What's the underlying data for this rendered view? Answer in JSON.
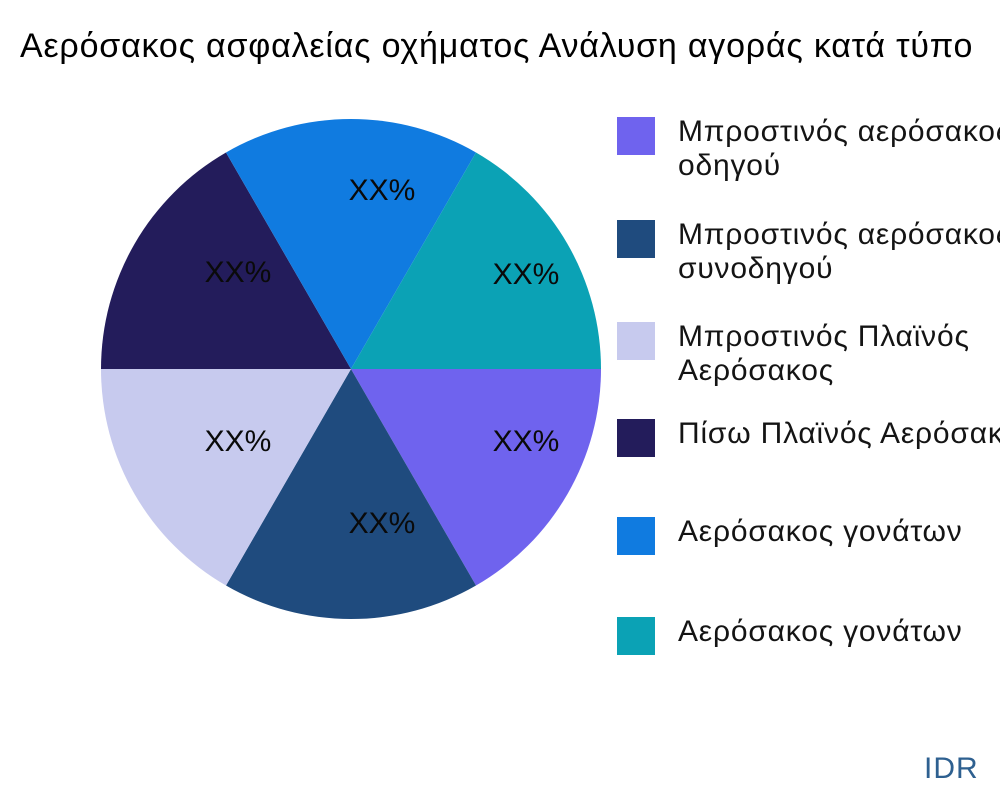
{
  "header": {
    "title": "Αερόσακος ασφαλείας οχήματος Ανάλυση αγοράς κατά τύπο"
  },
  "watermark": "IDR",
  "colors": {
    "background": "#ffffff",
    "title_text": "#000000",
    "legend_text": "#141414",
    "watermark_text": "#2e6090"
  },
  "chart_data": {
    "type": "pie",
    "title": "Αερόσακος ασφαλείας οχήματος Ανάλυση αγοράς κατά τύπο",
    "legend_position": "right",
    "start_angle_deg": 0,
    "direction": "clockwise",
    "equal_slices": true,
    "slices": [
      {
        "label": "Μπροστινός αερόσακος οδηγού",
        "label_lines": [
          "Μπροστινός αερόσακος",
          "οδηγού"
        ],
        "value": 16.67,
        "value_label": "XX%",
        "color": "#6f63ee"
      },
      {
        "label": "Μπροστινός αερόσακος συνοδηγού",
        "label_lines": [
          "Μπροστινός αερόσακος",
          "συνοδηγού"
        ],
        "value": 16.67,
        "value_label": "XX%",
        "color": "#1f4b7e"
      },
      {
        "label": "Μπροστινός Πλαϊνός Αερόσακος",
        "label_lines": [
          "Μπροστινός Πλαϊνός",
          "Αερόσακος"
        ],
        "value": 16.67,
        "value_label": "XX%",
        "color": "#c7caee"
      },
      {
        "label": "Πίσω Πλαϊνός Αερόσακος",
        "label_lines": [
          "Πίσω Πλαϊνός Αερόσακος"
        ],
        "value": 16.67,
        "value_label": "XX%",
        "color": "#231c5b"
      },
      {
        "label": "Αερόσακος γονάτων",
        "label_lines": [
          "Αερόσακος γονάτων"
        ],
        "value": 16.67,
        "value_label": "XX%",
        "color": "#107be0"
      },
      {
        "label": "Αερόσακος γονάτων",
        "label_lines": [
          "Αερόσακος γονάτων"
        ],
        "value": 16.67,
        "value_label": "XX%",
        "color": "#0ba2b5"
      }
    ]
  }
}
